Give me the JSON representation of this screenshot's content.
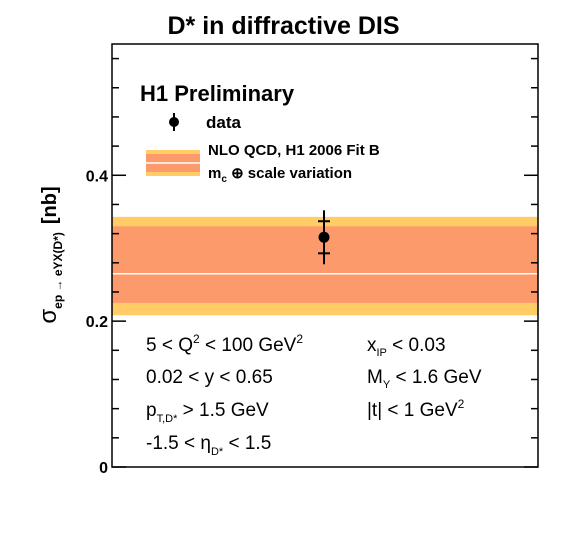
{
  "title": "D* in diffractive DIS",
  "chart_data": {
    "type": "scatter",
    "title": "D* in diffractive DIS",
    "ylabel": {
      "symbol": "σ",
      "subscript": "ep  → eYX(D*)",
      "unit": "[nb]"
    },
    "ylim": [
      0,
      0.58
    ],
    "y_ticks": [
      {
        "value": 0,
        "label": "0"
      },
      {
        "value": 0.2,
        "label": "0.2"
      },
      {
        "value": 0.4,
        "label": "0.4"
      }
    ],
    "experiment_label": "H1 Preliminary",
    "legend": {
      "data_label": "data",
      "band_label_1": "NLO QCD, H1 2006 Fit B",
      "band_label_2": "m",
      "band_label_2_sub": "c",
      "band_label_2_rest": " ⊕ scale variation"
    },
    "data_point": {
      "y": 0.315,
      "stat_err": 0.022,
      "total_err": 0.037
    },
    "nlo_band": {
      "central": 0.265,
      "inner": [
        0.225,
        0.33
      ],
      "outer": [
        0.208,
        0.343
      ],
      "color_inner": "#fd9a6b",
      "color_outer": "#ffcc66",
      "color_central": "#ffffff"
    },
    "cuts": {
      "q2": {
        "pre": "5 < Q",
        "sup": "2",
        "post": " < 100 GeV",
        "post_sup": "2"
      },
      "xip": {
        "pre": "x",
        "sub": "IP",
        "post": " < 0.03"
      },
      "y": "0.02 < y < 0.65",
      "my": {
        "pre": "M",
        "sub": "Y",
        "post": " < 1.6 GeV"
      },
      "pt": {
        "pre": "p",
        "sub": "T,D*",
        "post": " > 1.5 GeV"
      },
      "t": {
        "pre": "|t| < 1 GeV",
        "sup": "2"
      },
      "eta": {
        "pre": "-1.5 < η",
        "sub": "D*",
        "post": " < 1.5"
      }
    }
  }
}
